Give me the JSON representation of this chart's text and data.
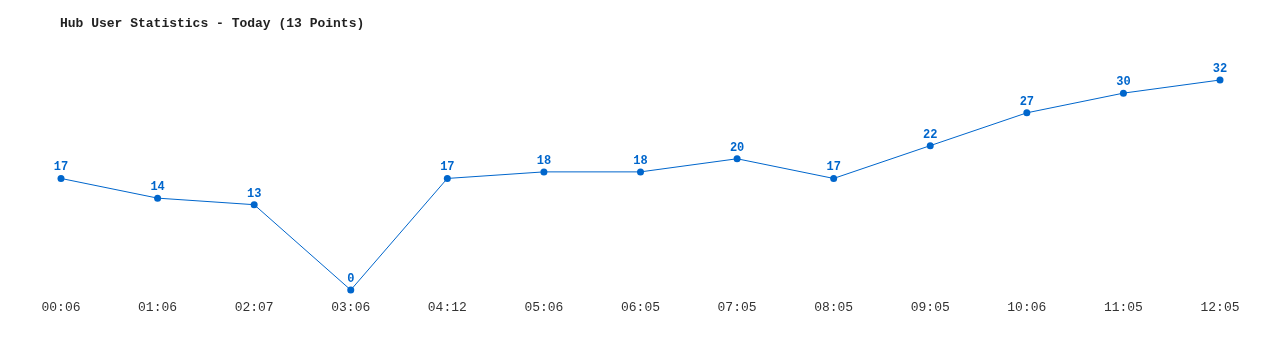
{
  "chart_data": {
    "type": "line",
    "title": "Hub User Statistics - Today (13 Points)",
    "categories": [
      "00:06",
      "01:06",
      "02:07",
      "03:06",
      "04:12",
      "05:06",
      "06:05",
      "07:05",
      "08:05",
      "09:05",
      "10:06",
      "11:05",
      "12:05"
    ],
    "series": [
      {
        "color": "#0066cc",
        "values": [
          17,
          14,
          13,
          0,
          17,
          18,
          18,
          20,
          17,
          22,
          27,
          30,
          32
        ]
      }
    ],
    "data_labels": true,
    "marker": "circle",
    "tick_labels": "x"
  }
}
